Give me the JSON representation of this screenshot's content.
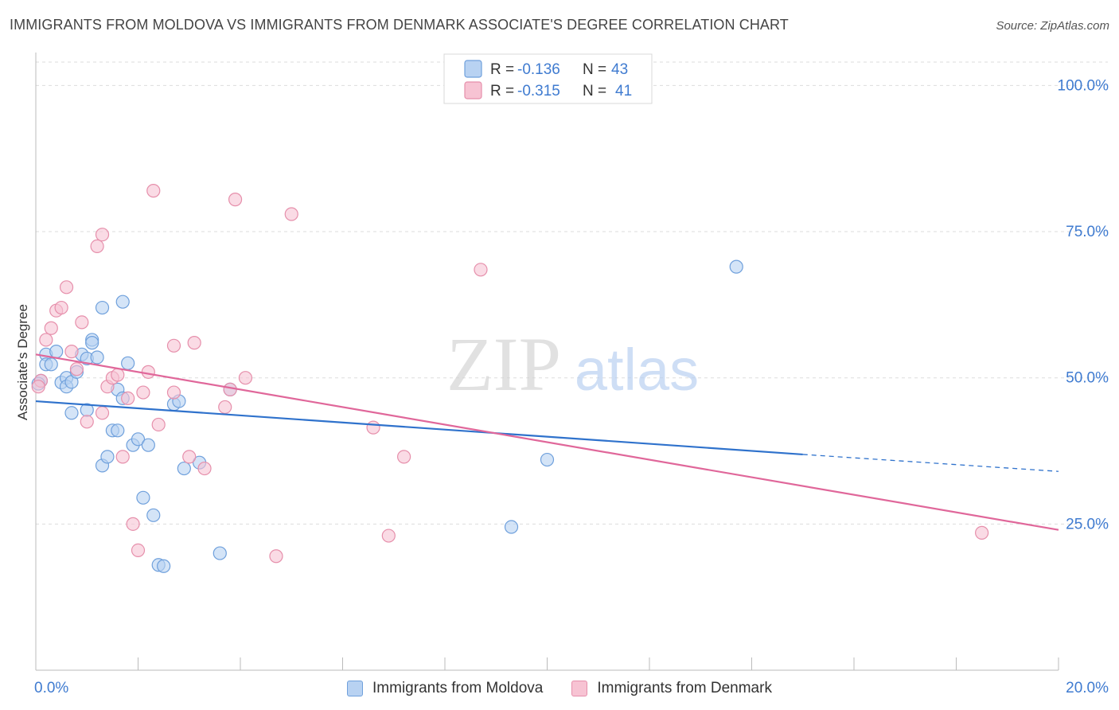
{
  "title": "IMMIGRANTS FROM MOLDOVA VS IMMIGRANTS FROM DENMARK ASSOCIATE'S DEGREE CORRELATION CHART",
  "source": "Source: ZipAtlas.com",
  "watermark": {
    "zip": "ZIP",
    "atlas": "atlas"
  },
  "colors": {
    "moldova_fill": "#b8d2f2",
    "moldova_stroke": "#6fa0dc",
    "moldova_line": "#2f72cc",
    "denmark_fill": "#f7c3d3",
    "denmark_stroke": "#e68fab",
    "denmark_line": "#e0679a",
    "axis_label": "#3f7bd0",
    "grid": "#dddddd"
  },
  "legend": [
    {
      "r_label": "R = ",
      "r_value": "-0.136",
      "n_label": "N = ",
      "n_value": "43"
    },
    {
      "r_label": "R = ",
      "r_value": "-0.315",
      "n_label": "N = ",
      "n_value": "41"
    }
  ],
  "chart_data": {
    "type": "scatter",
    "title": "IMMIGRANTS FROM MOLDOVA VS IMMIGRANTS FROM DENMARK ASSOCIATE'S DEGREE CORRELATION CHART",
    "xlabel": "",
    "ylabel": "Associate's Degree",
    "xlim": [
      0,
      20
    ],
    "ylim": [
      0,
      104
    ],
    "x_ticks_labeled": [
      {
        "value": 0,
        "label": "0.0%"
      },
      {
        "value": 20,
        "label": "20.0%"
      }
    ],
    "x_minor_ticks": [
      0,
      2,
      4,
      6,
      8,
      10,
      12,
      14,
      16,
      18,
      20
    ],
    "y_ticks": [
      {
        "value": 25,
        "label": "25.0%"
      },
      {
        "value": 50,
        "label": "50.0%"
      },
      {
        "value": 75,
        "label": "75.0%"
      },
      {
        "value": 100,
        "label": "100.0%"
      }
    ],
    "grid": true,
    "legend_position": "top-center",
    "series": [
      {
        "name": "Immigrants from Moldova",
        "r": -0.136,
        "n": 43,
        "points": [
          [
            0.1,
            49.5
          ],
          [
            0.2,
            54.0
          ],
          [
            0.2,
            52.3
          ],
          [
            0.3,
            52.3
          ],
          [
            0.4,
            54.5
          ],
          [
            0.5,
            49.2
          ],
          [
            0.6,
            50.0
          ],
          [
            0.6,
            48.5
          ],
          [
            0.7,
            49.3
          ],
          [
            0.7,
            44.0
          ],
          [
            0.8,
            51.0
          ],
          [
            0.9,
            54.0
          ],
          [
            1.0,
            53.3
          ],
          [
            1.0,
            44.5
          ],
          [
            1.1,
            56.5
          ],
          [
            1.1,
            56.0
          ],
          [
            1.2,
            53.5
          ],
          [
            1.3,
            35.0
          ],
          [
            1.3,
            62.0
          ],
          [
            1.4,
            36.5
          ],
          [
            1.5,
            41.0
          ],
          [
            1.6,
            41.0
          ],
          [
            1.6,
            48.0
          ],
          [
            1.7,
            46.5
          ],
          [
            1.7,
            63.0
          ],
          [
            1.8,
            52.5
          ],
          [
            1.9,
            38.5
          ],
          [
            2.0,
            39.5
          ],
          [
            2.1,
            29.5
          ],
          [
            2.2,
            38.5
          ],
          [
            2.3,
            26.5
          ],
          [
            2.4,
            18.0
          ],
          [
            2.5,
            17.8
          ],
          [
            2.7,
            45.5
          ],
          [
            2.8,
            46.0
          ],
          [
            2.9,
            34.5
          ],
          [
            3.2,
            35.5
          ],
          [
            3.6,
            20.0
          ],
          [
            3.8,
            48.0
          ],
          [
            9.3,
            24.5
          ],
          [
            10.0,
            36.0
          ],
          [
            13.7,
            69.0
          ],
          [
            0.05,
            49.0
          ]
        ],
        "trend": {
          "x_start": 0,
          "y_start": 46.0,
          "x_solid_end": 15.0,
          "y_solid_end": 36.9,
          "x_end": 20,
          "y_end": 34.0,
          "style": "solid then dashed"
        }
      },
      {
        "name": "Immigrants from Denmark",
        "r": -0.315,
        "n": 41,
        "points": [
          [
            0.1,
            49.5
          ],
          [
            0.2,
            56.5
          ],
          [
            0.3,
            58.5
          ],
          [
            0.4,
            61.5
          ],
          [
            0.5,
            62.0
          ],
          [
            0.6,
            65.5
          ],
          [
            0.7,
            54.5
          ],
          [
            0.8,
            51.5
          ],
          [
            0.9,
            59.5
          ],
          [
            1.0,
            42.5
          ],
          [
            1.2,
            72.5
          ],
          [
            1.3,
            44.0
          ],
          [
            1.3,
            74.5
          ],
          [
            1.4,
            48.5
          ],
          [
            1.5,
            50.0
          ],
          [
            1.6,
            50.5
          ],
          [
            1.7,
            36.5
          ],
          [
            1.8,
            46.5
          ],
          [
            1.9,
            25.0
          ],
          [
            2.0,
            20.5
          ],
          [
            2.1,
            47.5
          ],
          [
            2.2,
            51.0
          ],
          [
            2.3,
            82.0
          ],
          [
            2.4,
            42.0
          ],
          [
            2.7,
            55.5
          ],
          [
            2.7,
            47.5
          ],
          [
            3.0,
            36.5
          ],
          [
            3.1,
            56.0
          ],
          [
            3.3,
            34.5
          ],
          [
            3.7,
            45.0
          ],
          [
            3.8,
            48.0
          ],
          [
            3.9,
            80.5
          ],
          [
            4.1,
            50.0
          ],
          [
            4.7,
            19.5
          ],
          [
            5.0,
            78.0
          ],
          [
            6.6,
            41.5
          ],
          [
            6.9,
            23.0
          ],
          [
            7.2,
            36.5
          ],
          [
            8.7,
            68.5
          ],
          [
            18.5,
            23.5
          ],
          [
            0.05,
            48.5
          ]
        ],
        "trend": {
          "x_start": 0,
          "y_start": 54.0,
          "x_end": 20,
          "y_end": 24.0,
          "style": "solid"
        }
      }
    ]
  },
  "bottom_legend": [
    {
      "label": "Immigrants from Moldova"
    },
    {
      "label": "Immigrants from Denmark"
    }
  ]
}
